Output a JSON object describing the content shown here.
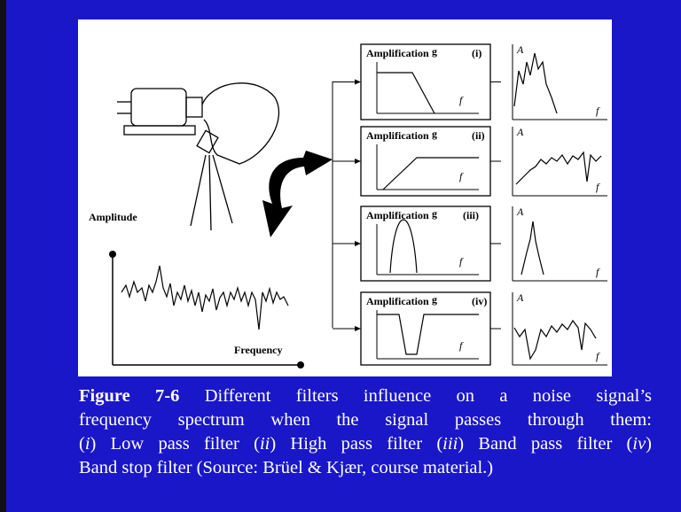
{
  "figure": {
    "amplitude_label": "Amplitude",
    "frequency_label": "Frequency",
    "filters": [
      {
        "label": "Amplification",
        "symbol": "g",
        "id": "(i)",
        "axis": "f"
      },
      {
        "label": "Amplification",
        "symbol": "g",
        "id": "(ii)",
        "axis": "f"
      },
      {
        "label": "Amplification",
        "symbol": "g",
        "id": "(iii)",
        "axis": "f"
      },
      {
        "label": "Amplification",
        "symbol": "g",
        "id": "(iv)",
        "axis": "f"
      }
    ],
    "outputs": [
      {
        "y_axis": "A",
        "x_axis": "f"
      },
      {
        "y_axis": "A",
        "x_axis": "f"
      },
      {
        "y_axis": "A",
        "x_axis": "f"
      },
      {
        "y_axis": "A",
        "x_axis": "f"
      }
    ]
  },
  "caption": {
    "label": "Figure 7-6",
    "line1": "Different filters influence on a noise signal’s",
    "line2": "frequency spectrum when the signal passes through them:",
    "line3": [
      {
        "text": "(",
        "italic": false
      },
      {
        "text": "i",
        "italic": true
      },
      {
        "text": ") Low pass filter (",
        "italic": false
      },
      {
        "text": "ii",
        "italic": true
      },
      {
        "text": ") High pass filter (",
        "italic": false
      },
      {
        "text": "iii",
        "italic": true
      },
      {
        "text": ") Band pass filter (",
        "italic": false
      },
      {
        "text": "iv",
        "italic": true
      },
      {
        "text": ")",
        "italic": false
      }
    ],
    "line4": "Band stop filter (Source: Brüel & Kjær, course material.)"
  }
}
